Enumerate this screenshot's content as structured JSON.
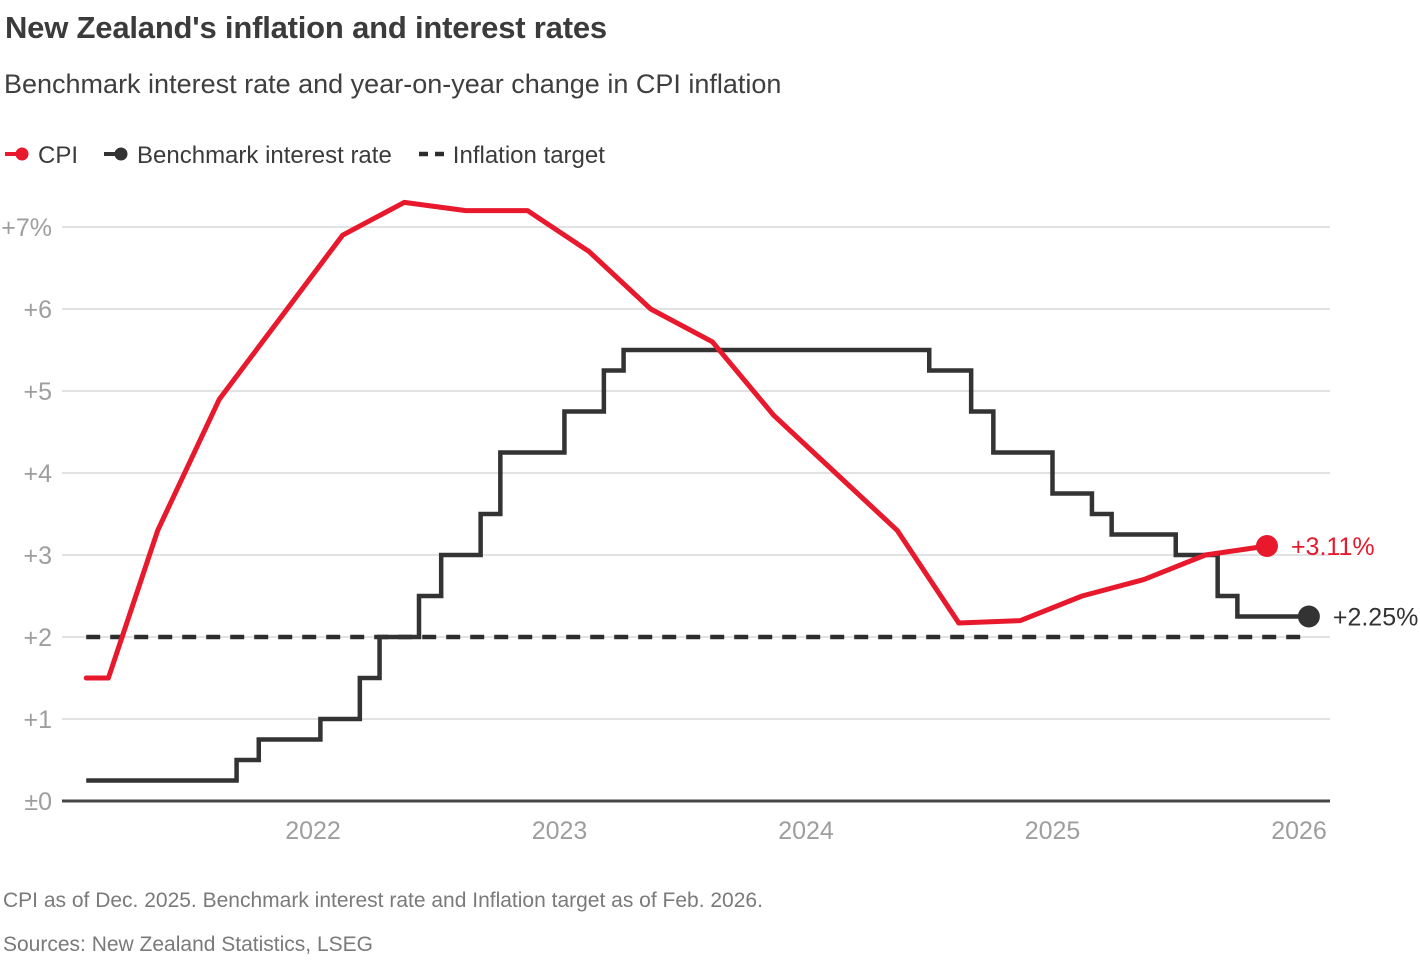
{
  "header": {
    "title": "New Zealand's inflation and interest rates",
    "subtitle": "Benchmark interest rate and year-on-year change in CPI inflation"
  },
  "legend": {
    "items": [
      {
        "label": "CPI",
        "color": "#e8192d",
        "glyph": "line-dot"
      },
      {
        "label": "Benchmark interest rate",
        "color": "#333333",
        "glyph": "line-dot"
      },
      {
        "label": "Inflation target",
        "color": "#2d2d2d",
        "glyph": "dashes"
      }
    ]
  },
  "chart_data": {
    "type": "line",
    "title": "New Zealand's inflation and interest rates",
    "xlabel": "",
    "ylabel": "",
    "grid": true,
    "legend_position": "top",
    "xlim": [
      2020.95,
      2026.4
    ],
    "ylim": [
      0,
      7.45
    ],
    "x_ticks": [
      2022,
      2023,
      2024,
      2025,
      2026
    ],
    "y_gridlines": [
      0,
      1,
      2,
      3,
      4,
      5,
      6,
      7
    ],
    "y_tick_labels": [
      "±0",
      "+1",
      "+2",
      "+3",
      "+4",
      "+5",
      "+6",
      "+7%"
    ],
    "colors": {
      "cpi": "#e8192d",
      "benchmark": "#333333",
      "target": "#2d2d2d",
      "gridline": "#d8d8d8",
      "axis": "#454545",
      "tick_label": "#9e9e9e"
    },
    "series": [
      {
        "name": "CPI",
        "type": "line",
        "color": "#e8192d",
        "line_width": 5,
        "end_dot": true,
        "end_label": "+3.11%",
        "points": [
          [
            2021.08,
            1.5
          ],
          [
            2021.17,
            1.5
          ],
          [
            2021.37,
            3.3
          ],
          [
            2021.62,
            4.9
          ],
          [
            2021.87,
            5.9
          ],
          [
            2022.12,
            6.9
          ],
          [
            2022.37,
            7.3
          ],
          [
            2022.62,
            7.2
          ],
          [
            2022.87,
            7.2
          ],
          [
            2023.12,
            6.7
          ],
          [
            2023.37,
            6.0
          ],
          [
            2023.62,
            5.6
          ],
          [
            2023.87,
            4.7
          ],
          [
            2024.12,
            4.0
          ],
          [
            2024.37,
            3.3
          ],
          [
            2024.62,
            2.17
          ],
          [
            2024.87,
            2.2
          ],
          [
            2025.12,
            2.5
          ],
          [
            2025.37,
            2.7
          ],
          [
            2025.62,
            3.0
          ],
          [
            2025.87,
            3.11
          ]
        ]
      },
      {
        "name": "Benchmark interest rate",
        "type": "step",
        "color": "#333333",
        "line_width": 4.5,
        "end_dot": true,
        "end_label": "+2.25%",
        "extend_to": 2026.04,
        "points": [
          [
            2021.08,
            0.25
          ],
          [
            2021.69,
            0.5
          ],
          [
            2021.78,
            0.75
          ],
          [
            2022.03,
            1.0
          ],
          [
            2022.19,
            1.5
          ],
          [
            2022.27,
            2.0
          ],
          [
            2022.43,
            2.5
          ],
          [
            2022.52,
            3.0
          ],
          [
            2022.68,
            3.5
          ],
          [
            2022.76,
            4.25
          ],
          [
            2023.02,
            4.75
          ],
          [
            2023.18,
            5.25
          ],
          [
            2023.26,
            5.5
          ],
          [
            2024.5,
            5.25
          ],
          [
            2024.67,
            4.75
          ],
          [
            2024.76,
            4.25
          ],
          [
            2025.0,
            3.75
          ],
          [
            2025.16,
            3.5
          ],
          [
            2025.24,
            3.25
          ],
          [
            2025.5,
            3.0
          ],
          [
            2025.67,
            2.5
          ],
          [
            2025.75,
            2.25
          ]
        ]
      },
      {
        "name": "Inflation target",
        "type": "dashed",
        "color": "#2d2d2d",
        "line_width": 4.5,
        "value": 2.0,
        "from": 2021.08,
        "to": 2026.04
      }
    ]
  },
  "footnotes": {
    "note": "CPI as of Dec. 2025. Benchmark interest rate and Inflation target as of Feb. 2026.",
    "sources": "Sources: New Zealand Statistics, LSEG"
  }
}
